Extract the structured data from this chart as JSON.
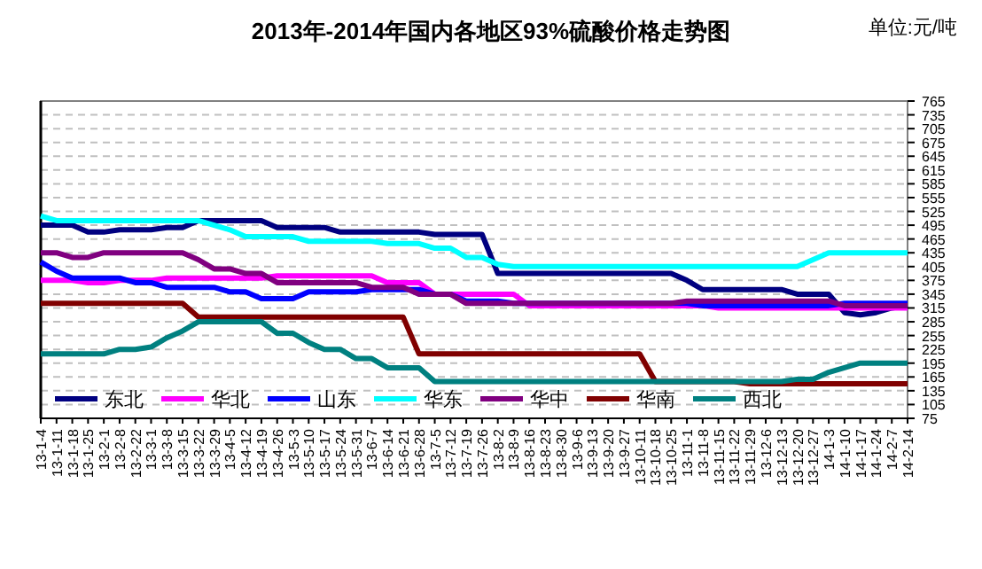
{
  "chart_data": {
    "type": "line",
    "title": "2013年-2014年国内各地区93%硫酸价格走势图",
    "annotations": [
      "单位:元/吨"
    ],
    "categories": [
      "13-1-4",
      "13-1-11",
      "13-1-18",
      "13-1-25",
      "13-2-1",
      "13-2-8",
      "13-2-22",
      "13-3-1",
      "13-3-8",
      "13-3-15",
      "13-3-22",
      "13-3-29",
      "13-4-5",
      "13-4-12",
      "13-4-19",
      "13-4-26",
      "13-5-3",
      "13-5-10",
      "13-5-17",
      "13-5-24",
      "13-5-31",
      "13-6-7",
      "13-6-14",
      "13-6-21",
      "13-6-28",
      "13-7-5",
      "13-7-12",
      "13-7-19",
      "13-7-26",
      "13-8-2",
      "13-8-9",
      "13-8-16",
      "13-8-23",
      "13-8-30",
      "13-9-6",
      "13-9-13",
      "13-9-20",
      "13-9-27",
      "13-10-11",
      "13-10-18",
      "13-10-25",
      "13-11-1",
      "13-11-8",
      "13-11-15",
      "13-11-22",
      "13-11-29",
      "13-12-6",
      "13-12-13",
      "13-12-20",
      "13-12-27",
      "14-1-3",
      "14-1-10",
      "14-1-17",
      "14-1-24",
      "14-2-7",
      "14-2-14"
    ],
    "series": [
      {
        "name": "东北",
        "color": "#000080",
        "values": [
          495,
          495,
          495,
          480,
          480,
          485,
          485,
          485,
          490,
          490,
          505,
          505,
          505,
          505,
          505,
          490,
          490,
          490,
          490,
          480,
          480,
          480,
          480,
          480,
          480,
          475,
          475,
          475,
          475,
          390,
          390,
          390,
          390,
          390,
          390,
          390,
          390,
          390,
          390,
          390,
          390,
          375,
          355,
          355,
          355,
          355,
          355,
          355,
          345,
          345,
          345,
          305,
          300,
          305,
          315,
          320
        ]
      },
      {
        "name": "华北",
        "color": "#ff00ff",
        "values": [
          375,
          375,
          375,
          370,
          370,
          375,
          375,
          375,
          380,
          380,
          380,
          380,
          380,
          380,
          380,
          385,
          385,
          385,
          385,
          385,
          385,
          385,
          370,
          370,
          370,
          345,
          345,
          345,
          345,
          345,
          345,
          320,
          320,
          320,
          320,
          320,
          320,
          320,
          320,
          320,
          320,
          320,
          320,
          315,
          315,
          315,
          315,
          315,
          315,
          315,
          315,
          315,
          315,
          315,
          315,
          315
        ]
      },
      {
        "name": "山东",
        "color": "#0000ff",
        "values": [
          415,
          395,
          380,
          380,
          380,
          380,
          370,
          370,
          360,
          360,
          360,
          360,
          350,
          350,
          335,
          335,
          335,
          350,
          350,
          350,
          350,
          355,
          355,
          355,
          355,
          345,
          345,
          330,
          330,
          330,
          325,
          325,
          325,
          325,
          325,
          325,
          325,
          325,
          325,
          325,
          325,
          325,
          320,
          320,
          320,
          320,
          320,
          320,
          320,
          320,
          320,
          325,
          325,
          325,
          325,
          325
        ]
      },
      {
        "name": "华东",
        "color": "#00ffff",
        "values": [
          515,
          505,
          505,
          505,
          505,
          505,
          505,
          505,
          505,
          505,
          505,
          495,
          485,
          470,
          470,
          470,
          470,
          460,
          460,
          460,
          460,
          460,
          455,
          455,
          455,
          445,
          445,
          425,
          425,
          410,
          405,
          405,
          405,
          405,
          405,
          405,
          405,
          405,
          405,
          405,
          405,
          405,
          405,
          405,
          405,
          405,
          405,
          405,
          405,
          420,
          435,
          435,
          435,
          435,
          435,
          435
        ]
      },
      {
        "name": "华中",
        "color": "#800080",
        "values": [
          435,
          435,
          425,
          425,
          435,
          435,
          435,
          435,
          435,
          435,
          420,
          400,
          400,
          390,
          390,
          370,
          370,
          370,
          370,
          370,
          370,
          360,
          360,
          360,
          345,
          345,
          345,
          325,
          325,
          325,
          325,
          325,
          325,
          325,
          325,
          325,
          325,
          325,
          325,
          325,
          325,
          330,
          330,
          330,
          330,
          330,
          330,
          330,
          330,
          330,
          330,
          320,
          320,
          320,
          320,
          320
        ]
      },
      {
        "name": "华南",
        "color": "#800000",
        "values": [
          325,
          325,
          325,
          325,
          325,
          325,
          325,
          325,
          325,
          325,
          295,
          295,
          295,
          295,
          295,
          295,
          295,
          295,
          295,
          295,
          295,
          295,
          295,
          295,
          215,
          215,
          215,
          215,
          215,
          215,
          215,
          215,
          215,
          215,
          215,
          215,
          215,
          215,
          215,
          155,
          155,
          155,
          155,
          155,
          155,
          150,
          150,
          150,
          150,
          150,
          150,
          150,
          150,
          150,
          150,
          150
        ]
      },
      {
        "name": "西北",
        "color": "#008080",
        "values": [
          215,
          215,
          215,
          215,
          215,
          225,
          225,
          230,
          250,
          265,
          285,
          285,
          285,
          285,
          285,
          260,
          260,
          240,
          225,
          225,
          205,
          205,
          185,
          185,
          185,
          155,
          155,
          155,
          155,
          155,
          155,
          155,
          155,
          155,
          155,
          155,
          155,
          155,
          155,
          155,
          155,
          155,
          155,
          155,
          155,
          155,
          155,
          155,
          160,
          160,
          175,
          185,
          195,
          195,
          195,
          195
        ]
      }
    ],
    "ylim": [
      75,
      765
    ],
    "yticks": [
      75,
      105,
      135,
      165,
      195,
      225,
      255,
      285,
      315,
      345,
      375,
      405,
      435,
      465,
      495,
      525,
      555,
      585,
      615,
      645,
      675,
      705,
      735,
      765
    ],
    "grid": "y",
    "legend": "bottom",
    "line_style": "solid",
    "marker": "none"
  }
}
